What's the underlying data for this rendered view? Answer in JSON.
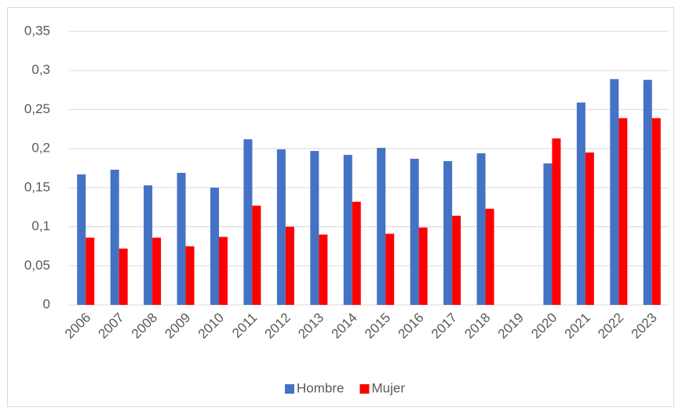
{
  "chart_data": {
    "type": "bar",
    "categories": [
      "2006",
      "2007",
      "2008",
      "2009",
      "2010",
      "2011",
      "2012",
      "2013",
      "2014",
      "2015",
      "2016",
      "2017",
      "2018",
      "2019",
      "2020",
      "2021",
      "2022",
      "2023"
    ],
    "series": [
      {
        "name": "Hombre",
        "color": "#4472c4",
        "values": [
          0.167,
          0.173,
          0.153,
          0.169,
          0.15,
          0.212,
          0.199,
          0.197,
          0.192,
          0.201,
          0.187,
          0.184,
          0.194,
          null,
          0.181,
          0.259,
          0.289,
          0.288
        ]
      },
      {
        "name": "Mujer",
        "color": "#ff0000",
        "values": [
          0.086,
          0.072,
          0.086,
          0.075,
          0.087,
          0.127,
          0.1,
          0.09,
          0.132,
          0.091,
          0.099,
          0.114,
          0.123,
          null,
          0.213,
          0.195,
          0.239,
          0.239
        ]
      }
    ],
    "ylim": [
      0,
      0.35
    ],
    "yticks": [
      0,
      {
        "value": 0.05,
        "label": "0,05"
      },
      {
        "value": 0.1,
        "label": "0,1"
      },
      {
        "value": 0.15,
        "label": "0,15"
      },
      {
        "value": 0.2,
        "label": "0,2"
      },
      {
        "value": 0.25,
        "label": "0,25"
      },
      {
        "value": 0.3,
        "label": "0,3"
      },
      {
        "value": 0.35,
        "label": "0,35"
      }
    ],
    "grid": true,
    "legend": "bottom"
  }
}
